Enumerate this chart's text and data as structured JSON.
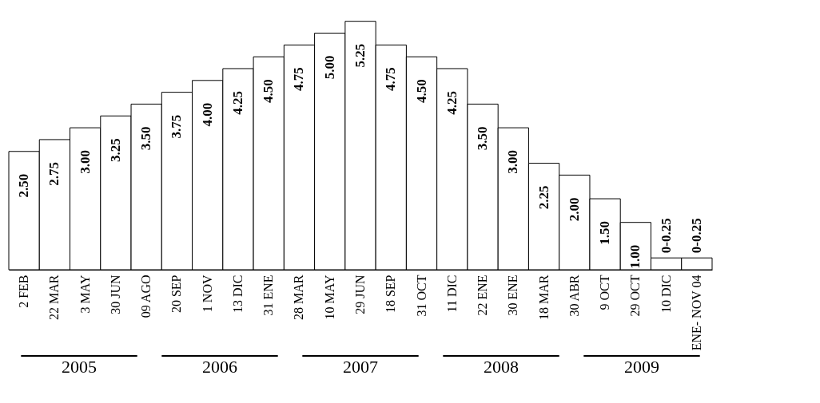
{
  "chart_data": {
    "type": "bar",
    "categories": [
      "2 FEB",
      "22 MAR",
      "3 MAY",
      "30 JUN",
      "09 AGO",
      "20 SEP",
      "1 NOV",
      "13 DIC",
      "31 ENE",
      "28 MAR",
      "10 MAY",
      "29 JUN",
      "18 SEP",
      "31 OCT",
      "11 DIC",
      "22 ENE",
      "30 ENE",
      "18 MAR",
      "30 ABR",
      "9 OCT",
      "29 OCT",
      "10 DIC",
      "ENE- NOV 04"
    ],
    "values": [
      2.5,
      2.75,
      3,
      3.25,
      3.5,
      3.75,
      4,
      4.25,
      4.5,
      4.75,
      5,
      5.25,
      4.75,
      4.5,
      4.25,
      3.5,
      3,
      2.25,
      2,
      1.5,
      1,
      0.25,
      0.25
    ],
    "value_labels": [
      "2.50",
      "2.75",
      "3.00",
      "3.25",
      "3.50",
      "3.75",
      "4.00",
      "4.25",
      "4.50",
      "4.75",
      "5.00",
      "5.25",
      "4.75",
      "4.50",
      "4.25",
      "3.50",
      "3.00",
      "2.25",
      "2.00",
      "1.50",
      "1.00",
      "0-0.25",
      "0-0.25"
    ],
    "color": "#ffffff",
    "annotations": [
      "2005",
      "2006",
      "2007",
      "2008",
      "2009"
    ],
    "grid": false
  }
}
